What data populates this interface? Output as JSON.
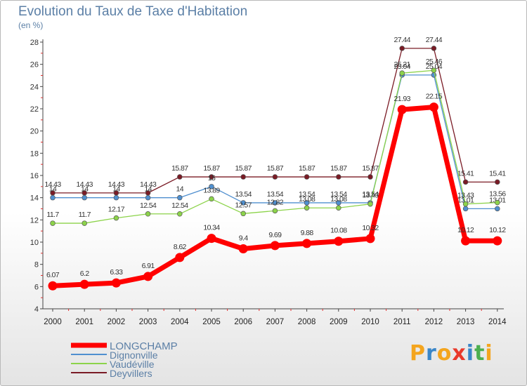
{
  "title": "Evolution du Taux de Taxe d'Habitation",
  "unit": "(en %)",
  "logo": [
    "P",
    "r",
    "o",
    "x",
    "i",
    "t",
    "i"
  ],
  "logo_colors": [
    "#f4a51e",
    "#3a86c8",
    "#f4a51e",
    "#e9392b",
    "#3a86c8",
    "#4caf50",
    "#f4a51e"
  ],
  "chart_data": {
    "type": "line",
    "x": [
      "2000",
      "2001",
      "2002",
      "2003",
      "2004",
      "2005",
      "2006",
      "2007",
      "2008",
      "2009",
      "2010",
      "2011",
      "2012",
      "2013",
      "2014"
    ],
    "ylim": [
      4,
      28
    ],
    "yticks": [
      4,
      6,
      8,
      10,
      12,
      14,
      16,
      18,
      20,
      22,
      24,
      26,
      28
    ],
    "grid": false,
    "legend": "bottom-left",
    "series": [
      {
        "name": "Deyvillers",
        "color": "#7a1b25",
        "values": [
          14.43,
          14.43,
          14.43,
          14.43,
          15.87,
          15.87,
          15.87,
          15.87,
          15.87,
          15.87,
          15.87,
          27.44,
          27.44,
          15.41,
          15.41
        ],
        "labels": [
          "14.43",
          "14.43",
          "14.43",
          "14.43",
          "15.87",
          "15.87",
          "15.87",
          "15.87",
          "15.87",
          "15.87",
          "15.87",
          "27.44",
          "27.44",
          "15.41",
          "15.41"
        ]
      },
      {
        "name": "Dignonville",
        "color": "#4f8fcf",
        "values": [
          14,
          14,
          14,
          14,
          14,
          15,
          13.54,
          13.54,
          13.54,
          13.54,
          13.54,
          25.04,
          25.04,
          13.01,
          13.01
        ],
        "labels": [
          "14",
          "14",
          "14",
          "14",
          "14",
          "15",
          "13.54",
          "13.54",
          "13.54",
          "13.54",
          "13.54",
          "25.04",
          "25.04",
          "13.01",
          "13.01"
        ]
      },
      {
        "name": "Vaudéville",
        "color": "#8cd34a",
        "values": [
          11.7,
          11.7,
          12.17,
          12.54,
          12.54,
          13.89,
          12.57,
          12.82,
          13.08,
          13.08,
          13.43,
          25.21,
          25.46,
          13.43,
          13.56
        ],
        "labels": [
          "11.7",
          "11.7",
          "12.17",
          "12.54",
          "12.54",
          "13.89",
          "12.57",
          "12.82",
          "13.08",
          "13.08",
          "13.43",
          "25.21",
          "25.46",
          "13.43",
          "13.56"
        ]
      },
      {
        "name": "LONGCHAMP",
        "color": "#ff0000",
        "values": [
          6.07,
          6.2,
          6.33,
          6.91,
          8.62,
          10.34,
          9.4,
          9.69,
          9.88,
          10.08,
          10.32,
          21.93,
          22.15,
          10.12,
          10.12
        ],
        "labels": [
          "6.07",
          "6.2",
          "6.33",
          "6.91",
          "8.62",
          "10.34",
          "9.4",
          "9.69",
          "9.88",
          "10.08",
          "10.32",
          "21.93",
          "22.15",
          "10.12",
          "10.12"
        ]
      }
    ],
    "legend_order": [
      "LONGCHAMP",
      "Dignonville",
      "Vaudéville",
      "Deyvillers"
    ]
  }
}
